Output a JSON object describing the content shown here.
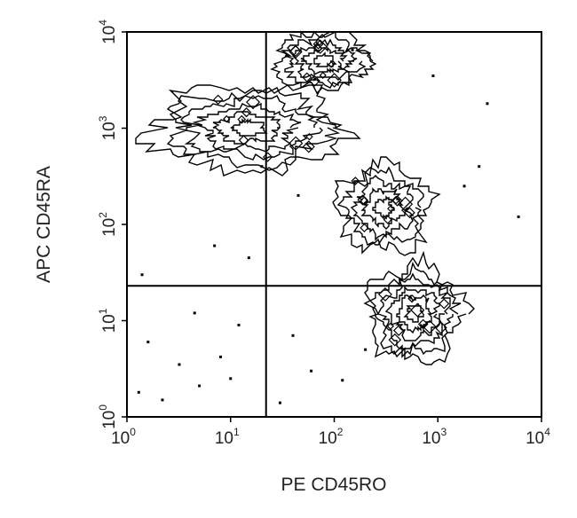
{
  "chart_data": {
    "type": "contour",
    "xlabel": "PE CD45RO",
    "ylabel": "APC CD45RA",
    "x_scale": "log",
    "y_scale": "log",
    "xlim": [
      1,
      10000
    ],
    "ylim": [
      1,
      10000
    ],
    "x_ticks": [
      {
        "base": "10",
        "exp": "0"
      },
      {
        "base": "10",
        "exp": "1"
      },
      {
        "base": "10",
        "exp": "2"
      },
      {
        "base": "10",
        "exp": "3"
      },
      {
        "base": "10",
        "exp": "4"
      }
    ],
    "y_ticks": [
      {
        "base": "10",
        "exp": "0"
      },
      {
        "base": "10",
        "exp": "1"
      },
      {
        "base": "10",
        "exp": "2"
      },
      {
        "base": "10",
        "exp": "3"
      },
      {
        "base": "10",
        "exp": "4"
      }
    ],
    "quadrant_gate": {
      "x": 22,
      "y": 23
    },
    "populations": [
      {
        "x_center": 15,
        "y_center": 1000,
        "x_spread_decades": 0.9,
        "y_spread_decades": 0.45,
        "levels": 6
      },
      {
        "x_center": 80,
        "y_center": 5000,
        "x_spread_decades": 0.45,
        "y_spread_decades": 0.3,
        "levels": 5
      },
      {
        "x_center": 600,
        "y_center": 12,
        "x_spread_decades": 0.45,
        "y_spread_decades": 0.5,
        "levels": 6
      },
      {
        "x_center": 300,
        "y_center": 150,
        "x_spread_decades": 0.45,
        "y_spread_decades": 0.45,
        "levels": 5
      }
    ],
    "outlier_points": [
      [
        3.2,
        3.5
      ],
      [
        5.0,
        2.1
      ],
      [
        1.6,
        6.0
      ],
      [
        8.0,
        4.2
      ],
      [
        2.2,
        1.5
      ],
      [
        12,
        9
      ],
      [
        4.5,
        12
      ],
      [
        7,
        60
      ],
      [
        15,
        45
      ],
      [
        1.4,
        30
      ],
      [
        60,
        3
      ],
      [
        120,
        2.4
      ],
      [
        40,
        7
      ],
      [
        1800,
        250
      ],
      [
        2500,
        400
      ],
      [
        6000,
        120
      ],
      [
        3000,
        1800
      ],
      [
        900,
        3500
      ],
      [
        150,
        6500
      ],
      [
        45,
        200
      ],
      [
        20,
        400
      ],
      [
        1.3,
        1.8
      ],
      [
        10,
        2.5
      ],
      [
        30,
        1.4
      ],
      [
        200,
        5
      ]
    ]
  }
}
